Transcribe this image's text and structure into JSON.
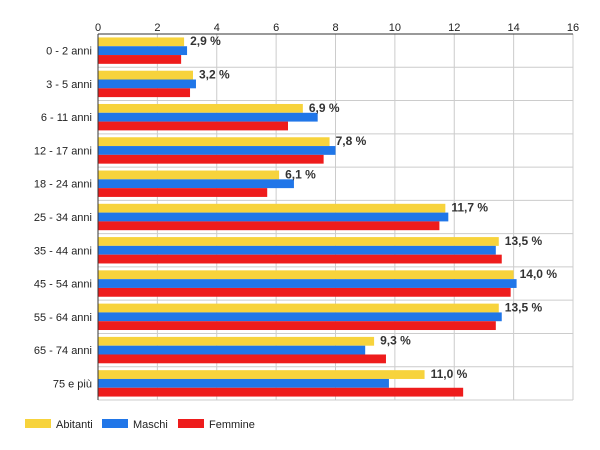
{
  "chart_data": {
    "type": "bar",
    "orientation": "horizontal",
    "categories": [
      "0 - 2 anni",
      "3 - 5 anni",
      "6 - 11 anni",
      "12 - 17 anni",
      "18 - 24 anni",
      "25 - 34 anni",
      "35 - 44 anni",
      "45 - 54 anni",
      "55 - 64 anni",
      "65 - 74 anni",
      "75 e più"
    ],
    "series": [
      {
        "name": "Abitanti",
        "color": "#F7D33C",
        "values": [
          2.9,
          3.2,
          6.9,
          7.8,
          6.1,
          11.7,
          13.5,
          14.0,
          13.5,
          9.3,
          11.0
        ]
      },
      {
        "name": "Maschi",
        "color": "#2076E8",
        "values": [
          3.0,
          3.3,
          7.4,
          8.0,
          6.6,
          11.8,
          13.4,
          14.1,
          13.6,
          9.0,
          9.8
        ]
      },
      {
        "name": "Femmine",
        "color": "#EE1C1C",
        "values": [
          2.8,
          3.1,
          6.4,
          7.6,
          5.7,
          11.5,
          13.6,
          13.9,
          13.4,
          9.7,
          12.3
        ]
      }
    ],
    "data_labels": [
      "2,9 %",
      "3,2 %",
      "6,9 %",
      "7,8 %",
      "6,1 %",
      "11,7 %",
      "13,5 %",
      "14,0 %",
      "13,5 %",
      "9,3 %",
      "11,0 %"
    ],
    "xlim": [
      0,
      16
    ],
    "xticks": [
      0,
      2,
      4,
      6,
      8,
      10,
      12,
      14,
      16
    ],
    "x_tick_labels": [
      "0",
      "2",
      "4",
      "6",
      "8",
      "10",
      "12",
      "14",
      "16"
    ],
    "grid": true,
    "legend_position": "bottom-left",
    "title": "",
    "xlabel": "",
    "ylabel": ""
  }
}
